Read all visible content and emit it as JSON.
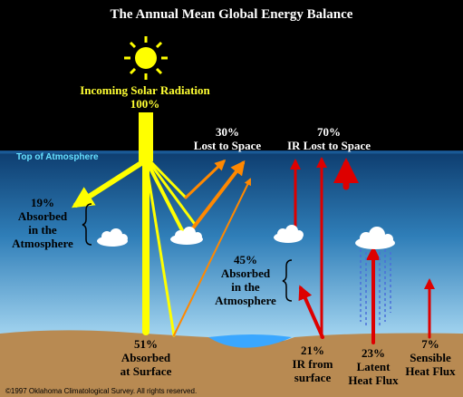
{
  "title": "The Annual Mean Global Energy Balance",
  "labels": {
    "incoming": {
      "text": "Incoming Solar Radiation",
      "pct": "100%"
    },
    "lost_to_space": {
      "pct": "30%",
      "text": "Lost to Space"
    },
    "ir_lost": {
      "pct": "70%",
      "text": "IR Lost to Space"
    },
    "top_of_atmosphere": "Top of Atmosphere",
    "absorbed_atm_19": {
      "pct": "19%",
      "line1": "Absorbed",
      "line2": "in the",
      "line3": "Atmosphere"
    },
    "absorbed_atm_45": {
      "pct": "45%",
      "line1": "Absorbed",
      "line2": "in the",
      "line3": "Atmosphere"
    },
    "absorbed_surface": {
      "pct": "51%",
      "line1": "Absorbed",
      "line2": "at Surface"
    },
    "ir_surface": {
      "pct": "21%",
      "line1": "IR from",
      "line2": "surface"
    },
    "latent": {
      "pct": "23%",
      "line1": "Latent",
      "line2": "Heat Flux"
    },
    "sensible": {
      "pct": "7%",
      "line1": "Sensible",
      "line2": "Heat Flux"
    }
  },
  "copyright": "©1997 Oklahoma Climatological Survey.  All rights reserved."
}
